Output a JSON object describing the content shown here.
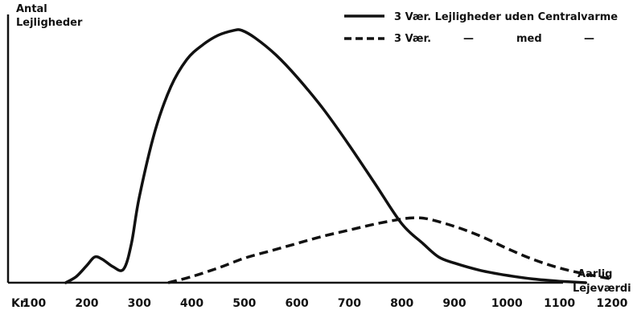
{
  "chart_data": {
    "type": "line",
    "title": "",
    "ylabel": [
      "Antal",
      "Lejligheder"
    ],
    "xlabel": [
      "Aarlig",
      "Lejeværdi"
    ],
    "x_prefix": "Kr.",
    "xticks": [
      100,
      200,
      300,
      400,
      500,
      600,
      700,
      800,
      900,
      1000,
      1100,
      1200
    ],
    "xlim": [
      50,
      1240
    ],
    "ylim": [
      0,
      100
    ],
    "legend": {
      "position": "top-right",
      "rows": [
        {
          "series": 0,
          "parts": [
            "3 Vær. Lejligheder uden Centralvarme"
          ]
        },
        {
          "series": 1,
          "parts": [
            "3 Vær.",
            "—",
            "med",
            "—"
          ]
        }
      ]
    },
    "series": [
      {
        "style": "solid",
        "x": [
          160,
          180,
          200,
          215,
          230,
          250,
          270,
          285,
          300,
          330,
          360,
          390,
          420,
          450,
          480,
          495,
          520,
          560,
          600,
          650,
          700,
          750,
          800,
          840,
          870,
          900,
          950,
          1000,
          1050,
          1100,
          1150
        ],
        "y": [
          0,
          2.5,
          7,
          10.5,
          9.5,
          6.5,
          5.5,
          16,
          35,
          62,
          80,
          91,
          97,
          101,
          103,
          103,
          100,
          93,
          84,
          71,
          56,
          40,
          24,
          16,
          10.5,
          8,
          5,
          3,
          1.5,
          0.6,
          0
        ]
      },
      {
        "style": "dashed",
        "x": [
          355,
          400,
          450,
          500,
          550,
          600,
          650,
          700,
          750,
          800,
          825,
          850,
          900,
          950,
          1000,
          1050,
          1100,
          1150,
          1200
        ],
        "y": [
          0,
          2.5,
          6,
          10,
          13,
          16,
          19,
          21.5,
          24,
          26,
          26.5,
          26,
          23,
          19,
          14,
          9.5,
          6,
          3.5,
          1.5
        ]
      }
    ]
  }
}
